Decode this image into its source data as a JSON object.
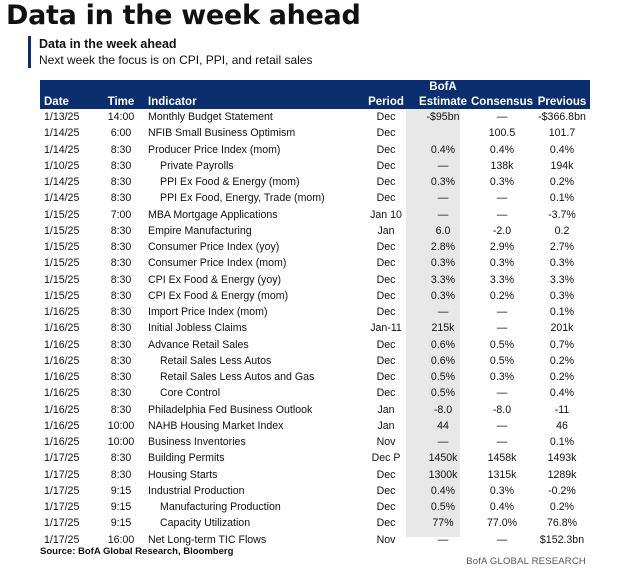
{
  "headline": "Data in the week ahead",
  "card": {
    "title": "Data in the week ahead",
    "subtitle": "Next week the focus is on CPI, PPI,  and retail sales"
  },
  "table": {
    "headers": {
      "date": "Date",
      "time": "Time",
      "indicator": "Indicator",
      "period": "Period",
      "estimate_top": "BofA",
      "estimate_bottom": "Estimate",
      "consensus": "Consensus",
      "previous": "Previous"
    },
    "rows": [
      {
        "date": "1/13/25",
        "time": "14:00",
        "indicator": "Monthly Budget Statement",
        "period": "Dec",
        "estimate": "-$95bn",
        "consensus": "—",
        "previous": "-$366.8bn",
        "indent": false
      },
      {
        "date": "1/14/25",
        "time": "6:00",
        "indicator": "NFIB Small Business Optimism",
        "period": "Dec",
        "estimate": "",
        "consensus": "100.5",
        "previous": "101.7",
        "indent": false
      },
      {
        "date": "1/14/25",
        "time": "8:30",
        "indicator": "Producer Price Index (mom)",
        "period": "Dec",
        "estimate": "0.4%",
        "consensus": "0.4%",
        "previous": "0.4%",
        "indent": false
      },
      {
        "date": "1/10/25",
        "time": "8:30",
        "indicator": "Private Payrolls",
        "period": "Dec",
        "estimate": "—",
        "consensus": "138k",
        "previous": "194k",
        "indent": true
      },
      {
        "date": "1/14/25",
        "time": "8:30",
        "indicator": "PPI Ex Food & Energy (mom)",
        "period": "Dec",
        "estimate": "0.3%",
        "consensus": "0.3%",
        "previous": "0.2%",
        "indent": true
      },
      {
        "date": "1/14/25",
        "time": "8:30",
        "indicator": "PPI Ex Food, Energy, Trade (mom)",
        "period": "Dec",
        "estimate": "—",
        "consensus": "—",
        "previous": "0.1%",
        "indent": true
      },
      {
        "date": "1/15/25",
        "time": "7:00",
        "indicator": "MBA Mortgage Applications",
        "period": "Jan 10",
        "estimate": "—",
        "consensus": "—",
        "previous": "-3.7%",
        "indent": false
      },
      {
        "date": "1/15/25",
        "time": "8:30",
        "indicator": "Empire Manufacturing",
        "period": "Jan",
        "estimate": "6.0",
        "consensus": "-2.0",
        "previous": "0.2",
        "indent": false
      },
      {
        "date": "1/15/25",
        "time": "8:30",
        "indicator": "Consumer Price Index (yoy)",
        "period": "Dec",
        "estimate": "2.8%",
        "consensus": "2.9%",
        "previous": "2.7%",
        "indent": false
      },
      {
        "date": "1/15/25",
        "time": "8:30",
        "indicator": "Consumer Price Index (mom)",
        "period": "Dec",
        "estimate": "0.3%",
        "consensus": "0.3%",
        "previous": "0.3%",
        "indent": false
      },
      {
        "date": "1/15/25",
        "time": "8:30",
        "indicator": "CPI Ex Food & Energy (yoy)",
        "period": "Dec",
        "estimate": "3.3%",
        "consensus": "3.3%",
        "previous": "3.3%",
        "indent": false
      },
      {
        "date": "1/15/25",
        "time": "8:30",
        "indicator": "CPI Ex Food & Energy (mom)",
        "period": "Dec",
        "estimate": "0.3%",
        "consensus": "0.2%",
        "previous": "0.3%",
        "indent": false
      },
      {
        "date": "1/16/25",
        "time": "8:30",
        "indicator": "Import Price Index (mom)",
        "period": "Dec",
        "estimate": "—",
        "consensus": "—",
        "previous": "0.1%",
        "indent": false
      },
      {
        "date": "1/16/25",
        "time": "8:30",
        "indicator": "Initial Jobless Claims",
        "period": "Jan-11",
        "estimate": "215k",
        "consensus": "—",
        "previous": "201k",
        "indent": false
      },
      {
        "date": "1/16/25",
        "time": "8:30",
        "indicator": "Advance Retail Sales",
        "period": "Dec",
        "estimate": "0.6%",
        "consensus": "0.5%",
        "previous": "0.7%",
        "indent": false
      },
      {
        "date": "1/16/25",
        "time": "8:30",
        "indicator": "Retail Sales Less Autos",
        "period": "Dec",
        "estimate": "0.6%",
        "consensus": "0.5%",
        "previous": "0.2%",
        "indent": true
      },
      {
        "date": "1/16/25",
        "time": "8:30",
        "indicator": "Retail Sales Less Autos and Gas",
        "period": "Dec",
        "estimate": "0.5%",
        "consensus": "0.3%",
        "previous": "0.2%",
        "indent": true
      },
      {
        "date": "1/16/25",
        "time": "8:30",
        "indicator": "Core Control",
        "period": "Dec",
        "estimate": "0.5%",
        "consensus": "—",
        "previous": "0.4%",
        "indent": true
      },
      {
        "date": "1/16/25",
        "time": "8:30",
        "indicator": "Philadelphia Fed Business Outlook",
        "period": "Jan",
        "estimate": "-8.0",
        "consensus": "-8.0",
        "previous": "-11",
        "indent": false
      },
      {
        "date": "1/16/25",
        "time": "10:00",
        "indicator": "NAHB Housing Market Index",
        "period": "Jan",
        "estimate": "44",
        "consensus": "—",
        "previous": "46",
        "indent": false
      },
      {
        "date": "1/16/25",
        "time": "10:00",
        "indicator": "Business Inventories",
        "period": "Nov",
        "estimate": "—",
        "consensus": "—",
        "previous": "0.1%",
        "indent": false
      },
      {
        "date": "1/17/25",
        "time": "8:30",
        "indicator": "Building Permits",
        "period": "Dec P",
        "estimate": "1450k",
        "consensus": "1458k",
        "previous": "1493k",
        "indent": false
      },
      {
        "date": "1/17/25",
        "time": "8:30",
        "indicator": "Housing Starts",
        "period": "Dec",
        "estimate": "1300k",
        "consensus": "1315k",
        "previous": "1289k",
        "indent": false
      },
      {
        "date": "1/17/25",
        "time": "9:15",
        "indicator": "Industrial Production",
        "period": "Dec",
        "estimate": "0.4%",
        "consensus": "0.3%",
        "previous": "-0.2%",
        "indent": false
      },
      {
        "date": "1/17/25",
        "time": "9:15",
        "indicator": "Manufacturing Production",
        "period": "Dec",
        "estimate": "0.5%",
        "consensus": "0.4%",
        "previous": "0.2%",
        "indent": true
      },
      {
        "date": "1/17/25",
        "time": "9:15",
        "indicator": "Capacity Utilization",
        "period": "Dec",
        "estimate": "77%",
        "consensus": "77.0%",
        "previous": "76.8%",
        "indent": true
      },
      {
        "date": "1/17/25",
        "time": "16:00",
        "indicator": "Net Long-term TIC Flows",
        "period": "Nov",
        "estimate": "—",
        "consensus": "—",
        "previous": "$152.3bn",
        "indent": false
      }
    ]
  },
  "footer": {
    "source": "Source: BofA Global Research, Bloomberg",
    "brand": "BofA GLOBAL RESEARCH"
  }
}
